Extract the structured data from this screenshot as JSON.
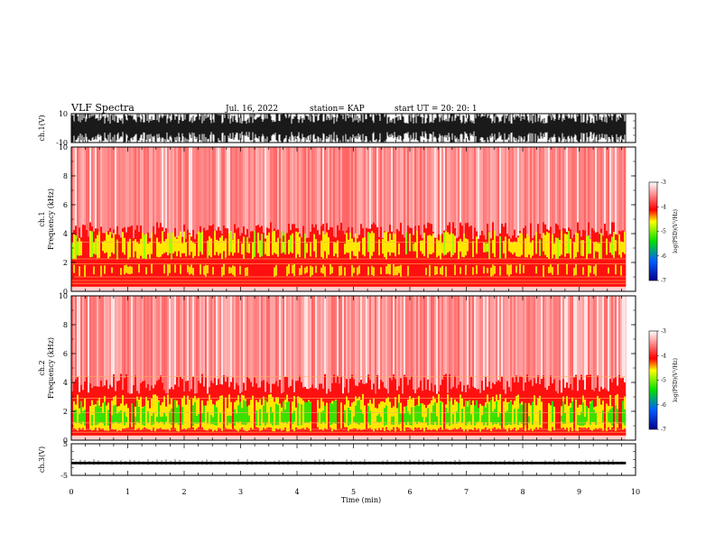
{
  "header": {
    "title": "VLF Spectra",
    "date": "Jul. 16, 2022",
    "station": "station= KAP",
    "start": "start UT = 20: 20: 1"
  },
  "chart_data": [
    {
      "type": "line",
      "ylabel": "ch.1(V)",
      "ylim": [
        -10,
        10
      ],
      "ytick_labels": [
        "10",
        "-10"
      ],
      "description_series": "broadband waveform noise filling most of range"
    },
    {
      "type": "heatmap",
      "ylabel": "ch.1\nFrequency (kHz)",
      "ylim": [
        0,
        10
      ],
      "yticks": [
        "0",
        "2",
        "4",
        "6",
        "8",
        "10"
      ],
      "colorbar": {
        "label": "log(PSD)(V²/Hz)",
        "ticks": [
          "-3",
          "-4",
          "-5",
          "-6",
          "-7"
        ],
        "range": [
          -7,
          -3
        ],
        "colors": [
          "#000090",
          "#0060ff",
          "#00e000",
          "#ffff00",
          "#ff0000",
          "#ffffff"
        ]
      }
    },
    {
      "type": "heatmap",
      "ylabel": "ch.2\nFrequency (kHz)",
      "ylim": [
        0,
        10
      ],
      "yticks": [
        "0",
        "2",
        "4",
        "6",
        "8",
        "10"
      ],
      "colorbar": {
        "label": "log(PSD)(V²/Hz)",
        "ticks": [
          "-3",
          "-4",
          "-5",
          "-6",
          "-7"
        ],
        "range": [
          -7,
          -3
        ],
        "colors": [
          "#000090",
          "#0060ff",
          "#00e000",
          "#ffff00",
          "#ff0000",
          "#ffffff"
        ]
      }
    },
    {
      "type": "line",
      "ylabel": "ch.3(V)",
      "ylim": [
        -5,
        5
      ],
      "ytick_labels": [
        "5",
        "-5"
      ],
      "description_series": "near-constant level around -1 V"
    }
  ],
  "x_axis": {
    "label": "Time (min)",
    "range": [
      0,
      10
    ],
    "ticks": [
      "0",
      "1",
      "2",
      "3",
      "4",
      "5",
      "6",
      "7",
      "8",
      "9",
      "10"
    ],
    "data_end": 9.83
  }
}
